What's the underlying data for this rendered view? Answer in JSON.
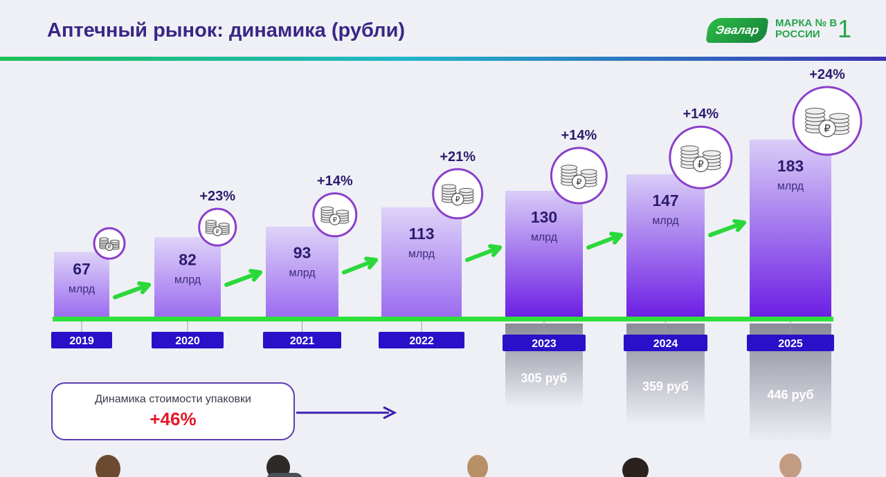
{
  "title": "Аптечный рынок: динамика (рубли)",
  "logo": {
    "brand": "Эвалар",
    "tagline": "МАРКА № В РОССИИ",
    "rank": "1"
  },
  "chart_data": {
    "type": "bar",
    "categories": [
      "2019",
      "2020",
      "2021",
      "2022",
      "2023",
      "2024",
      "2025"
    ],
    "values": [
      67,
      82,
      93,
      113,
      130,
      147,
      183
    ],
    "value_labels": [
      "67",
      "82",
      "93",
      "113",
      "130",
      "147",
      "183"
    ],
    "unit": "млрд",
    "growth_labels": [
      "",
      "+23%",
      "+14%",
      "+21%",
      "+14%",
      "+14%",
      "+24%"
    ],
    "pack_prices": [
      "",
      "",
      "",
      "",
      "305 руб",
      "359 руб",
      "446 руб"
    ],
    "colors": {
      "bar_top": "#dcd0f7",
      "bar_bottom_strong": "#6d1fe4",
      "year_box": "#2a10c8",
      "baseline": "#2fe03a",
      "arrow": "#2bd83a",
      "coin_ring": "#8a3fc9"
    },
    "icons": [
      "coin-stack-icon",
      "ruble-icon"
    ]
  },
  "pack_dynamics": {
    "label": "Динамика стоимости упаковки",
    "value": "+46%"
  }
}
